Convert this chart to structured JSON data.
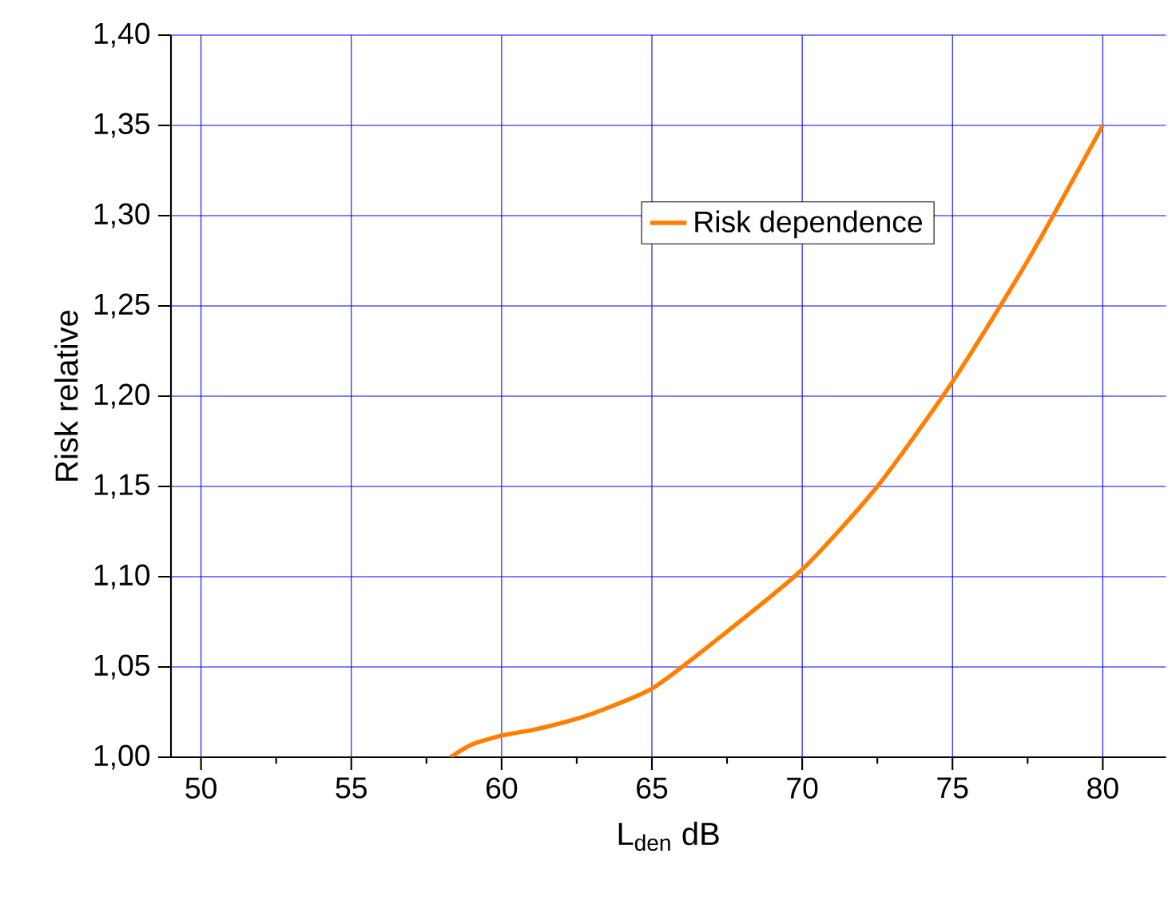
{
  "chart_data": {
    "type": "line",
    "xlabel": "L$_{den}$  dB",
    "ylabel": "Risk relative",
    "x": [
      58.3,
      59,
      60,
      61,
      62,
      63,
      65,
      67,
      70,
      72.5,
      75,
      77.5,
      80
    ],
    "series": [
      {
        "name": "Risk dependence",
        "color": "#ff7f00",
        "values": [
          1.0,
          1.007,
          1.012,
          1.015,
          1.019,
          1.024,
          1.038,
          1.063,
          1.104,
          1.15,
          1.208,
          1.275,
          1.35
        ]
      }
    ],
    "xlim": [
      49,
      82.1
    ],
    "ylim": [
      1.0,
      1.4
    ],
    "xticks": [
      50,
      55,
      60,
      65,
      70,
      75,
      80
    ],
    "yticks": [
      {
        "value": 1.0,
        "label": "1,00"
      },
      {
        "value": 1.05,
        "label": "1,05"
      },
      {
        "value": 1.1,
        "label": "1,10"
      },
      {
        "value": 1.15,
        "label": "1,15"
      },
      {
        "value": 1.2,
        "label": "1,20"
      },
      {
        "value": 1.25,
        "label": "1,25"
      },
      {
        "value": 1.3,
        "label": "1,30"
      },
      {
        "value": 1.35,
        "label": "1,35"
      },
      {
        "value": 1.4,
        "label": "1,40"
      }
    ],
    "grid": true,
    "legend": "top",
    "line_style": "solid",
    "marker": "none"
  }
}
